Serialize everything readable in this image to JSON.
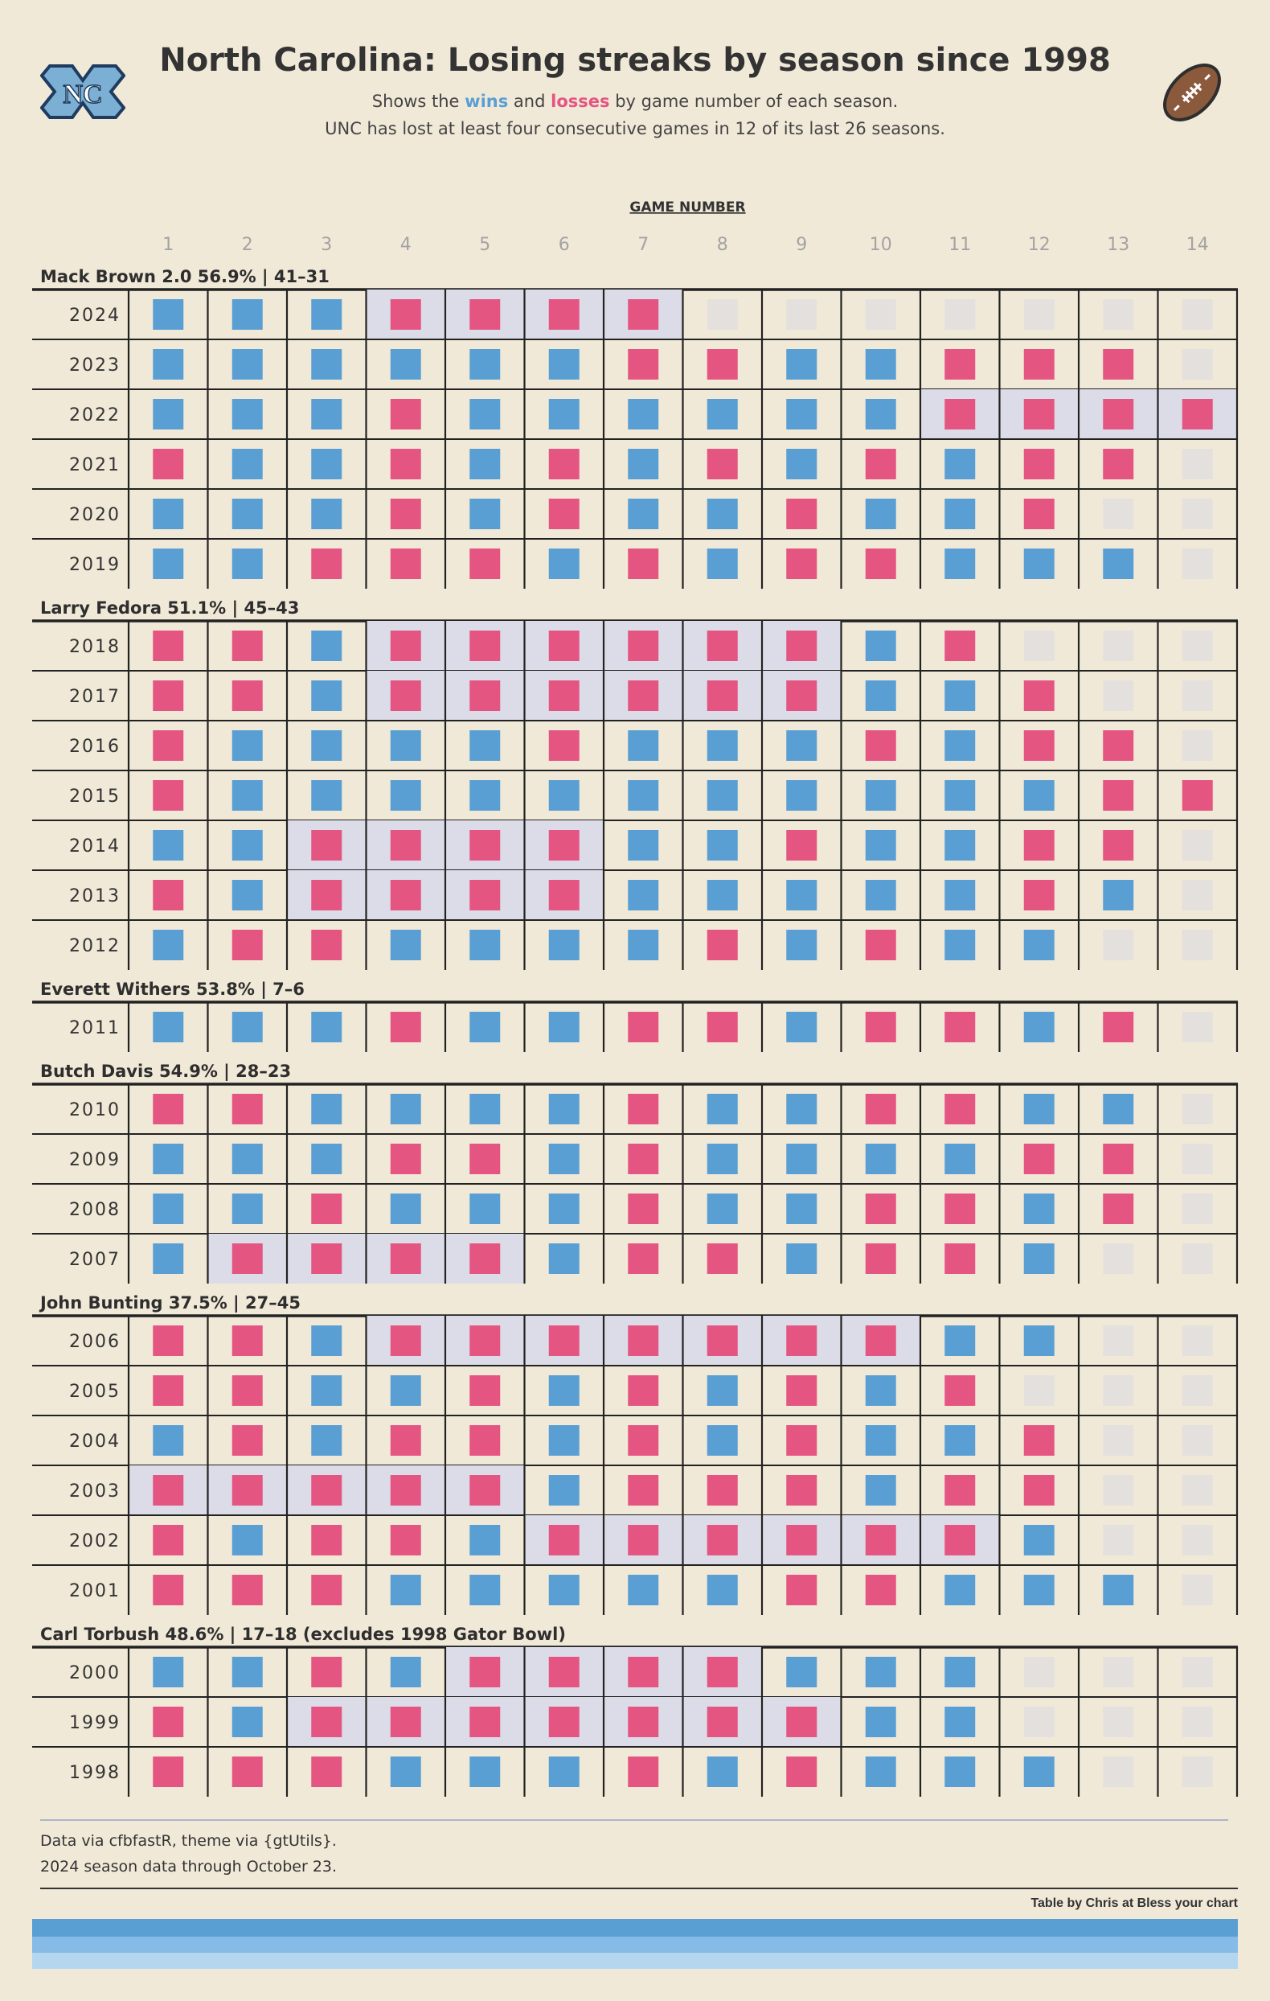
{
  "header": {
    "title": "North Carolina: Losing streaks by season since 1998",
    "subtitle_pre": "Shows the",
    "subtitle_wins": "wins",
    "subtitle_and": "and",
    "subtitle_losses": "losses",
    "subtitle_post": "by game number of each season.",
    "subtitle_line2": "UNC has lost at least four consecutive games in 12 of its last 26 seasons.",
    "logo_text": "NC"
  },
  "footer": {
    "note_1": "Data via cfbfastR, theme via {gtUtils}.",
    "note_2": "2024 season data through October 23.",
    "credit": "Table by Chris at Bless your chart"
  },
  "colors": {
    "background": "#f1e9d8",
    "win": "#5a9fd4",
    "loss": "#e55582",
    "not_played": "#e3e0dd",
    "streak_highlight": "#dcdce8"
  },
  "chart_data": {
    "type": "table",
    "column_header": "GAME NUMBER",
    "columns": [
      "1",
      "2",
      "3",
      "4",
      "5",
      "6",
      "7",
      "8",
      "9",
      "10",
      "11",
      "12",
      "13",
      "14"
    ],
    "legend": {
      "W": "win",
      "L": "loss",
      "-": "not played"
    },
    "groups": [
      {
        "label": "Mack Brown 2.0 56.9% | 41–31",
        "seasons": [
          {
            "year": "2024",
            "results": "WWWLLLL-------",
            "streak": [
              4,
              7
            ]
          },
          {
            "year": "2023",
            "results": "WWWWWWLLWWLLL-",
            "streak": null
          },
          {
            "year": "2022",
            "results": "WWWLWWWWWWLLLL",
            "streak": [
              11,
              14
            ]
          },
          {
            "year": "2021",
            "results": "LWWLWLWLWLWLL-",
            "streak": null
          },
          {
            "year": "2020",
            "results": "WWWLWLWWLWWL--",
            "streak": null
          },
          {
            "year": "2019",
            "results": "WWLLLWLWLLWWW-",
            "streak": null
          }
        ]
      },
      {
        "label": "Larry Fedora 51.1% | 45–43",
        "seasons": [
          {
            "year": "2018",
            "results": "LLWLLLLLLWL---",
            "streak": [
              4,
              9
            ]
          },
          {
            "year": "2017",
            "results": "LLWLLLLLLWWL--",
            "streak": [
              4,
              9
            ]
          },
          {
            "year": "2016",
            "results": "LWWWWLWWWLWLL-",
            "streak": null
          },
          {
            "year": "2015",
            "results": "LWWWWWWWWWWWLL",
            "streak": null
          },
          {
            "year": "2014",
            "results": "WWLLLLWWLWWLL-",
            "streak": [
              3,
              6
            ]
          },
          {
            "year": "2013",
            "results": "LWLLLLWWWWWLW-",
            "streak": [
              3,
              6
            ]
          },
          {
            "year": "2012",
            "results": "WLLWWWWLWLWW--",
            "streak": null
          }
        ]
      },
      {
        "label": "Everett Withers 53.8% | 7–6",
        "seasons": [
          {
            "year": "2011",
            "results": "WWWLWWLLWLLWL-",
            "streak": null
          }
        ]
      },
      {
        "label": "Butch Davis 54.9% | 28–23",
        "seasons": [
          {
            "year": "2010",
            "results": "LLWWWWLWWLLWW-",
            "streak": null
          },
          {
            "year": "2009",
            "results": "WWWLLWLWWWWLL-",
            "streak": null
          },
          {
            "year": "2008",
            "results": "WWLWWWLWWLLWL-",
            "streak": null
          },
          {
            "year": "2007",
            "results": "WLLLLWLLWLLW--",
            "streak": [
              2,
              5
            ]
          }
        ]
      },
      {
        "label": "John Bunting 37.5% | 27–45",
        "seasons": [
          {
            "year": "2006",
            "results": "LLWLLLLLLLWW--",
            "streak": [
              4,
              10
            ]
          },
          {
            "year": "2005",
            "results": "LLWWLWLWLWL---",
            "streak": null
          },
          {
            "year": "2004",
            "results": "WLWLLWLWLWWL--",
            "streak": null
          },
          {
            "year": "2003",
            "results": "LLLLLWLLLWLL--",
            "streak": [
              1,
              5
            ]
          },
          {
            "year": "2002",
            "results": "LWLLWLLLLLLW--",
            "streak": [
              6,
              11
            ]
          },
          {
            "year": "2001",
            "results": "LLLWWWWWLLWWW-",
            "streak": null
          }
        ]
      },
      {
        "label": "Carl Torbush 48.6% | 17–18 (excludes 1998 Gator Bowl)",
        "seasons": [
          {
            "year": "2000",
            "results": "WWLWLLLLWWW---",
            "streak": [
              5,
              8
            ]
          },
          {
            "year": "1999",
            "results": "LWLLLLLLLWW---",
            "streak": [
              3,
              9
            ]
          },
          {
            "year": "1998",
            "results": "LLLWWWLWLWWW--",
            "streak": null
          }
        ]
      }
    ]
  }
}
